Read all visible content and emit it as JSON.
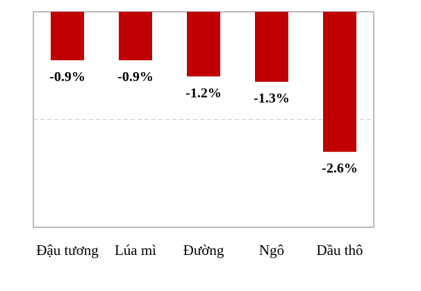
{
  "chart_data": {
    "type": "bar",
    "categories": [
      "Đậu tương",
      "Lúa mì",
      "Đường",
      "Ngô",
      "Dầu thô"
    ],
    "values": [
      -0.9,
      -0.9,
      -1.2,
      -1.3,
      -2.6
    ],
    "value_labels": [
      "-0.9%",
      "-0.9%",
      "-1.2%",
      "-1.3%",
      "-2.6%"
    ],
    "color": "#c00000",
    "ylim": [
      -4,
      0
    ],
    "gridlines": [
      -2
    ]
  }
}
